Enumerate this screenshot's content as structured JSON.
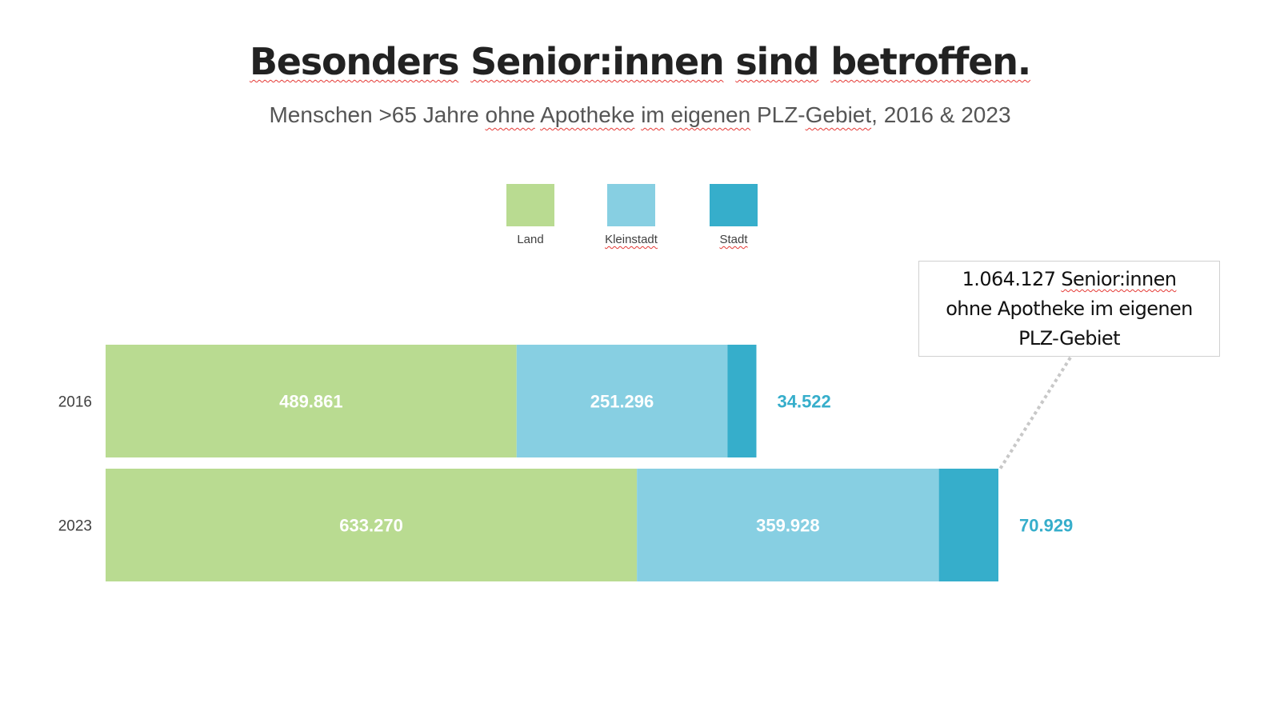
{
  "title": {
    "parts": [
      "Besonders",
      "Senior:innen",
      "sind",
      "betroffen."
    ]
  },
  "subtitle": {
    "parts": [
      "Menschen >65 Jahre ",
      "ohne",
      " ",
      "Apotheke",
      " ",
      "im",
      " ",
      "eigenen",
      " PLZ-",
      "Gebiet",
      ", 2016 & 2023"
    ]
  },
  "callout": {
    "line1_number": "1.064.127",
    "line1_word": "Senior:innen",
    "line2": "ohne Apotheke im eigenen",
    "line3": "PLZ-Gebiet"
  },
  "colors": {
    "land": "#b9db91",
    "kleinstadt": "#87cfe2",
    "stadt": "#36aecb",
    "outside_label": "#36aecb",
    "inside_label": "#ffffff"
  },
  "chart_data": {
    "type": "bar",
    "orientation": "horizontal",
    "stacked": true,
    "title": "Besonders Senior:innen sind betroffen.",
    "subtitle": "Menschen >65 Jahre ohne Apotheke im eigenen PLZ-Gebiet, 2016 & 2023",
    "categories": [
      "2016",
      "2023"
    ],
    "series": [
      {
        "name": "Land",
        "values": [
          489861,
          633270
        ],
        "labels": [
          "489.861",
          "633.270"
        ]
      },
      {
        "name": "Kleinstadt",
        "values": [
          251296,
          359928
        ],
        "labels": [
          "251.296",
          "359.928"
        ]
      },
      {
        "name": "Stadt",
        "values": [
          34522,
          70929
        ],
        "labels": [
          "34.522",
          "70.929"
        ]
      }
    ],
    "legend": [
      "Land",
      "Kleinstadt",
      "Stadt"
    ],
    "legend_position": "top-center",
    "xlim": [
      0,
      1064127
    ],
    "grid": false,
    "xlabel": "",
    "ylabel": "",
    "annotation": "1.064.127 Senior:innen ohne Apotheke im eigenen PLZ-Gebiet"
  }
}
